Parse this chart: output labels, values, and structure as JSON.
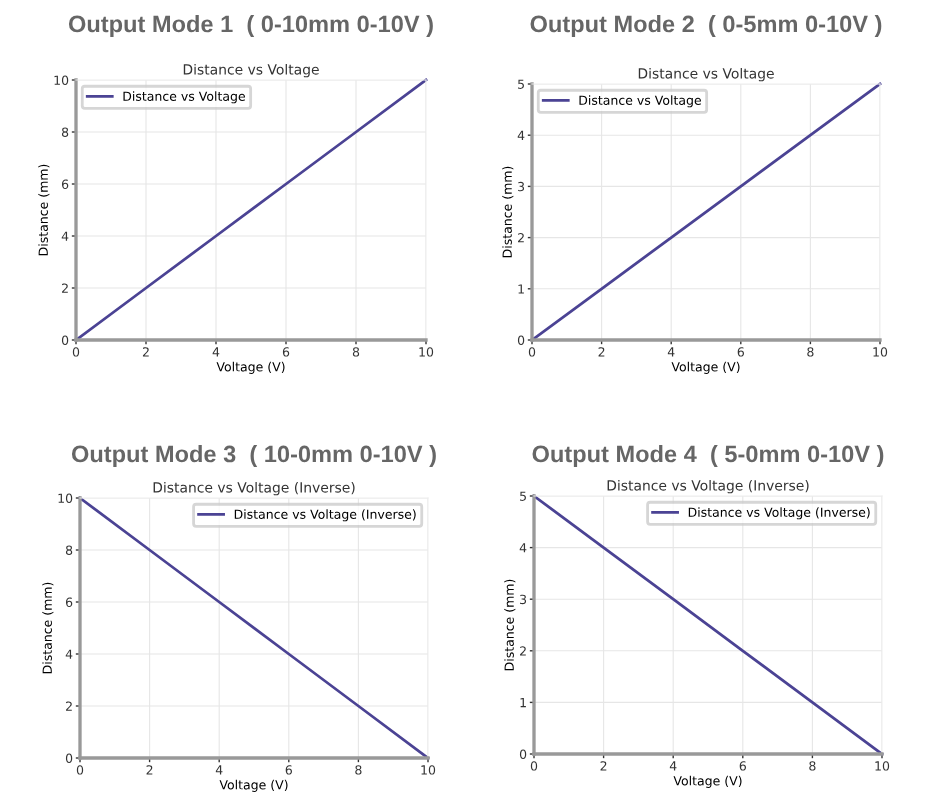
{
  "chart_data": [
    {
      "type": "line",
      "title": "Output Mode 1  ( 0-10mm 0-10V )",
      "subtitle": "Distance vs Voltage",
      "xlabel": "Voltage (V)",
      "ylabel": "Distance (mm)",
      "x": [
        0,
        2,
        4,
        6,
        8,
        10
      ],
      "series": [
        {
          "name": "Distance vs Voltage",
          "color": "#4b4394",
          "values": [
            0,
            2,
            4,
            6,
            8,
            10
          ]
        }
      ],
      "xlim": [
        0,
        10
      ],
      "ylim": [
        0,
        10
      ],
      "xticks": [
        0,
        2,
        4,
        6,
        8,
        10
      ],
      "yticks": [
        0,
        2,
        4,
        6,
        8,
        10
      ],
      "grid": true,
      "legend": "top left"
    },
    {
      "type": "line",
      "title": "Output Mode 2  ( 0-5mm 0-10V )",
      "subtitle": "Distance vs Voltage",
      "xlabel": "Voltage (V)",
      "ylabel": "Distance (mm)",
      "x": [
        0,
        2,
        4,
        6,
        8,
        10
      ],
      "series": [
        {
          "name": "Distance vs Voltage",
          "color": "#4b4394",
          "values": [
            0,
            1,
            2,
            3,
            4,
            5
          ]
        }
      ],
      "xlim": [
        0,
        10
      ],
      "ylim": [
        0,
        5
      ],
      "xticks": [
        0,
        2,
        4,
        6,
        8,
        10
      ],
      "yticks": [
        0,
        1,
        2,
        3,
        4,
        5
      ],
      "grid": true,
      "legend": "top left"
    },
    {
      "type": "line",
      "title": "Output Mode 3  ( 10-0mm 0-10V )",
      "subtitle": "Distance vs Voltage (Inverse)",
      "xlabel": "Voltage (V)",
      "ylabel": "Distance (mm)",
      "x": [
        0,
        2,
        4,
        6,
        8,
        10
      ],
      "series": [
        {
          "name": "Distance vs Voltage (Inverse)",
          "color": "#4b4394",
          "values": [
            10,
            8,
            6,
            4,
            2,
            0
          ]
        }
      ],
      "xlim": [
        0,
        10
      ],
      "ylim": [
        0,
        10
      ],
      "xticks": [
        0,
        2,
        4,
        6,
        8,
        10
      ],
      "yticks": [
        0,
        2,
        4,
        6,
        8,
        10
      ],
      "grid": true,
      "legend": "top right"
    },
    {
      "type": "line",
      "title": "Output Mode 4  ( 5-0mm 0-10V )",
      "subtitle": "Distance vs Voltage (Inverse)",
      "xlabel": "Voltage (V)",
      "ylabel": "Distance (mm)",
      "x": [
        0,
        2,
        4,
        6,
        8,
        10
      ],
      "series": [
        {
          "name": "Distance vs Voltage (Inverse)",
          "color": "#4b4394",
          "values": [
            5,
            4,
            3,
            2,
            1,
            0
          ]
        }
      ],
      "xlim": [
        0,
        10
      ],
      "ylim": [
        0,
        5
      ],
      "xticks": [
        0,
        2,
        4,
        6,
        8,
        10
      ],
      "yticks": [
        0,
        1,
        2,
        3,
        4,
        5
      ],
      "grid": true,
      "legend": "top right"
    }
  ]
}
